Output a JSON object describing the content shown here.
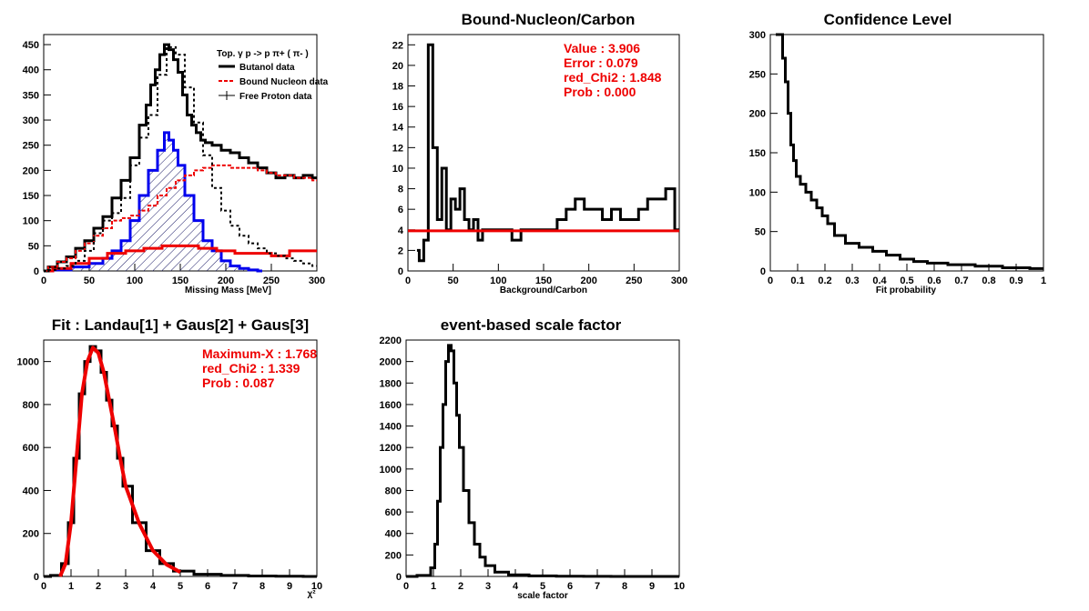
{
  "chart_data": [
    {
      "type": "line",
      "title": "",
      "xlabel": "Missing Mass [MeV]",
      "ylabel": "",
      "xlim": [
        0,
        300
      ],
      "ylim": [
        0,
        470
      ],
      "xticks": [
        0,
        50,
        100,
        150,
        200,
        250,
        300
      ],
      "yticks": [
        0,
        50,
        100,
        150,
        200,
        250,
        300,
        350,
        400,
        450
      ],
      "legend": {
        "header": "Top.  γ p -> p  π+ ( π- )",
        "entries": [
          "Butanol data",
          "Bound Nucleon data",
          "Free Proton data"
        ],
        "placement": "top-right"
      },
      "colors": {
        "butanol": "#000000",
        "bound": "#ee0000",
        "free": "#0000ee",
        "hatch": "#1a1a66"
      },
      "series": [
        {
          "name": "Butanol data",
          "x": [
            0,
            10,
            20,
            30,
            40,
            50,
            60,
            70,
            80,
            90,
            100,
            110,
            115,
            120,
            125,
            130,
            135,
            140,
            145,
            150,
            155,
            160,
            165,
            170,
            175,
            180,
            190,
            200,
            210,
            220,
            230,
            240,
            250,
            260,
            270,
            280,
            290,
            300
          ],
          "values": [
            0,
            8,
            18,
            28,
            45,
            60,
            85,
            108,
            145,
            180,
            225,
            290,
            330,
            370,
            400,
            430,
            450,
            440,
            420,
            395,
            350,
            310,
            290,
            275,
            260,
            255,
            250,
            240,
            235,
            225,
            215,
            205,
            195,
            185,
            190,
            185,
            190,
            185
          ]
        },
        {
          "name": "Bound Nucleon data",
          "x": [
            0,
            10,
            20,
            30,
            40,
            50,
            60,
            70,
            80,
            90,
            100,
            110,
            120,
            130,
            140,
            150,
            160,
            170,
            180,
            190,
            200,
            210,
            220,
            230,
            240,
            250,
            260,
            270,
            280,
            290,
            300
          ],
          "values": [
            0,
            8,
            18,
            25,
            40,
            55,
            70,
            85,
            100,
            105,
            110,
            120,
            130,
            150,
            165,
            180,
            190,
            200,
            205,
            210,
            210,
            205,
            205,
            205,
            200,
            195,
            190,
            190,
            185,
            185,
            180
          ]
        },
        {
          "name": "Free Proton data",
          "x": [
            0,
            10,
            20,
            30,
            40,
            50,
            60,
            70,
            80,
            90,
            100,
            110,
            120,
            130,
            140,
            150,
            160,
            170,
            180,
            190,
            200,
            210,
            220,
            230,
            240,
            250,
            260,
            270,
            280,
            290,
            300
          ],
          "values": [
            0,
            2,
            5,
            10,
            20,
            40,
            75,
            100,
            115,
            145,
            210,
            265,
            310,
            390,
            445,
            430,
            365,
            295,
            230,
            165,
            120,
            90,
            70,
            55,
            45,
            35,
            30,
            25,
            20,
            15,
            10
          ]
        },
        {
          "name": "",
          "x": [
            0,
            20,
            40,
            60,
            70,
            80,
            90,
            100,
            110,
            120,
            130,
            135,
            140,
            145,
            150,
            160,
            170,
            180,
            190,
            200,
            210,
            220,
            230,
            240
          ],
          "values": [
            0,
            2,
            8,
            15,
            25,
            40,
            60,
            100,
            150,
            200,
            240,
            275,
            260,
            240,
            210,
            150,
            100,
            60,
            40,
            20,
            10,
            5,
            2,
            0
          ]
        },
        {
          "name": "",
          "x": [
            0,
            20,
            40,
            60,
            80,
            100,
            120,
            140,
            160,
            180,
            200,
            220,
            240,
            260,
            280,
            300
          ],
          "values": [
            0,
            5,
            15,
            25,
            35,
            40,
            45,
            50,
            50,
            45,
            40,
            35,
            35,
            30,
            40,
            40
          ]
        }
      ]
    },
    {
      "type": "line",
      "title": "Bound-Nucleon/Carbon",
      "xlabel": "Background/Carbon",
      "ylabel": "",
      "xlim": [
        0,
        300
      ],
      "ylim": [
        0,
        23
      ],
      "xticks": [
        0,
        50,
        100,
        150,
        200,
        250,
        300
      ],
      "yticks": [
        0,
        2,
        4,
        6,
        8,
        10,
        12,
        14,
        16,
        18,
        20,
        22
      ],
      "fit": {
        "value": 3.906,
        "error": 0.079,
        "red_chi2": 1.848,
        "prob": 0.0
      },
      "annotations": [
        "Value : 3.906",
        "Error : 0.079",
        "red_Chi2 : 1.848",
        "Prob : 0.000"
      ],
      "series": [
        {
          "name": "",
          "x": [
            10,
            15,
            20,
            25,
            30,
            35,
            40,
            45,
            50,
            55,
            60,
            65,
            70,
            75,
            80,
            85,
            90,
            95,
            100,
            110,
            120,
            130,
            140,
            150,
            160,
            170,
            180,
            190,
            200,
            210,
            220,
            230,
            240,
            250,
            260,
            270,
            280,
            290,
            300
          ],
          "values": [
            2,
            1,
            3,
            22,
            12,
            5,
            10,
            4,
            7,
            6,
            8,
            5,
            4,
            5,
            3,
            4,
            4,
            4,
            4,
            4,
            3,
            4,
            4,
            4,
            4,
            5,
            6,
            7,
            6,
            6,
            5,
            6,
            5,
            5,
            6,
            7,
            7,
            8,
            4
          ]
        },
        {
          "name": "",
          "x": [
            0,
            300
          ],
          "values": [
            3.906,
            3.906
          ]
        }
      ]
    },
    {
      "type": "line",
      "title": "Confidence Level",
      "xlabel": "Fit probability",
      "ylabel": "",
      "xlim": [
        0,
        1
      ],
      "ylim": [
        0,
        300
      ],
      "xticks": [
        0,
        0.1,
        0.2,
        0.3,
        0.4,
        0.5,
        0.6,
        0.7,
        0.8,
        0.9,
        1
      ],
      "yticks": [
        0,
        50,
        100,
        150,
        200,
        250,
        300
      ],
      "series": [
        {
          "name": "",
          "x": [
            0.02,
            0.04,
            0.05,
            0.06,
            0.07,
            0.08,
            0.09,
            0.1,
            0.12,
            0.14,
            0.16,
            0.18,
            0.2,
            0.22,
            0.25,
            0.3,
            0.35,
            0.4,
            0.45,
            0.5,
            0.55,
            0.6,
            0.7,
            0.8,
            0.9,
            1.0
          ],
          "values": [
            300,
            300,
            270,
            240,
            200,
            160,
            140,
            120,
            110,
            100,
            90,
            80,
            70,
            60,
            45,
            35,
            30,
            25,
            20,
            15,
            12,
            10,
            8,
            6,
            4,
            3
          ]
        }
      ]
    },
    {
      "type": "line",
      "title": "Fit : Landau[1] + Gaus[2] + Gaus[3]",
      "xlabel": "χ²",
      "ylabel": "",
      "xlim": [
        0,
        10
      ],
      "ylim": [
        0,
        1100
      ],
      "xticks": [
        0,
        1,
        2,
        3,
        4,
        5,
        6,
        7,
        8,
        9,
        10
      ],
      "yticks": [
        0,
        200,
        400,
        600,
        800,
        1000
      ],
      "fit": {
        "maximum_x": 1.768,
        "red_chi2": 1.339,
        "prob": 0.087
      },
      "annotations": [
        "Maximum-X : 1.768",
        "red_Chi2 : 1.339",
        "Prob : 0.087"
      ],
      "series": [
        {
          "name": "",
          "x": [
            0,
            0.5,
            0.8,
            1.0,
            1.2,
            1.4,
            1.6,
            1.8,
            2.0,
            2.2,
            2.4,
            2.6,
            2.8,
            3.0,
            3.5,
            4.0,
            4.5,
            5.0,
            6.0,
            7.0,
            8.0,
            9.0,
            10.0
          ],
          "values": [
            0,
            5,
            60,
            250,
            550,
            850,
            1000,
            1070,
            1050,
            950,
            820,
            700,
            550,
            420,
            250,
            120,
            60,
            25,
            10,
            5,
            2,
            1,
            0
          ]
        },
        {
          "name": "",
          "x": [
            0.6,
            0.8,
            1.0,
            1.2,
            1.4,
            1.6,
            1.8,
            2.0,
            2.2,
            2.4,
            2.6,
            2.8,
            3.0,
            3.5,
            4.0,
            4.5,
            5.0
          ],
          "values": [
            0,
            60,
            250,
            550,
            850,
            1000,
            1065,
            1040,
            950,
            820,
            690,
            550,
            420,
            245,
            120,
            55,
            20
          ]
        }
      ]
    },
    {
      "type": "line",
      "title": "event-based scale factor",
      "xlabel": "scale factor",
      "ylabel": "",
      "xlim": [
        0,
        10
      ],
      "ylim": [
        0,
        2200
      ],
      "xticks": [
        0,
        1,
        2,
        3,
        4,
        5,
        6,
        7,
        8,
        9,
        10
      ],
      "yticks": [
        0,
        200,
        400,
        600,
        800,
        1000,
        1200,
        1400,
        1600,
        1800,
        2000,
        2200
      ],
      "series": [
        {
          "name": "",
          "x": [
            0,
            0.8,
            1.0,
            1.1,
            1.2,
            1.3,
            1.4,
            1.5,
            1.6,
            1.7,
            1.8,
            1.9,
            2.0,
            2.2,
            2.4,
            2.6,
            2.8,
            3.0,
            3.5,
            4.0,
            5.0,
            6.0,
            7.0,
            8.0,
            9.0,
            10.0
          ],
          "values": [
            0,
            10,
            80,
            300,
            700,
            1200,
            1600,
            2000,
            2150,
            2100,
            1800,
            1500,
            1200,
            800,
            500,
            300,
            180,
            100,
            40,
            15,
            5,
            2,
            1,
            0,
            0,
            0
          ]
        }
      ]
    }
  ]
}
